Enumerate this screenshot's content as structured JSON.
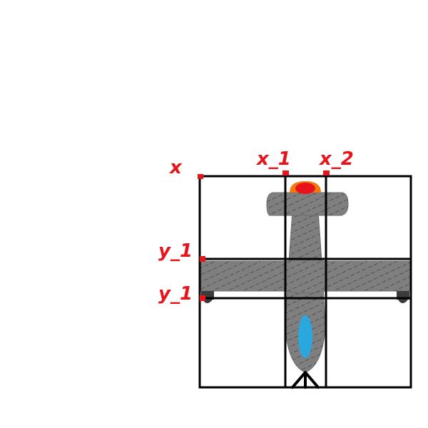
{
  "labels": {
    "x": "x",
    "x_1": "x_1",
    "x_2": "x_2",
    "y_1_top": "y_1",
    "y_1_bottom": "y_1"
  },
  "colors": {
    "label_red": "#e8141c",
    "grid_black": "#000000",
    "plane_gray": "#7f7f7f",
    "plane_hatch": "#3a3a3a",
    "cockpit_blue": "#2aa7df",
    "engine_orange": "#f07a10",
    "engine_red": "#e8141c",
    "wheel_dark": "#3b3b3b"
  },
  "icons": {
    "airplane": "airplane-top-view-icon"
  }
}
